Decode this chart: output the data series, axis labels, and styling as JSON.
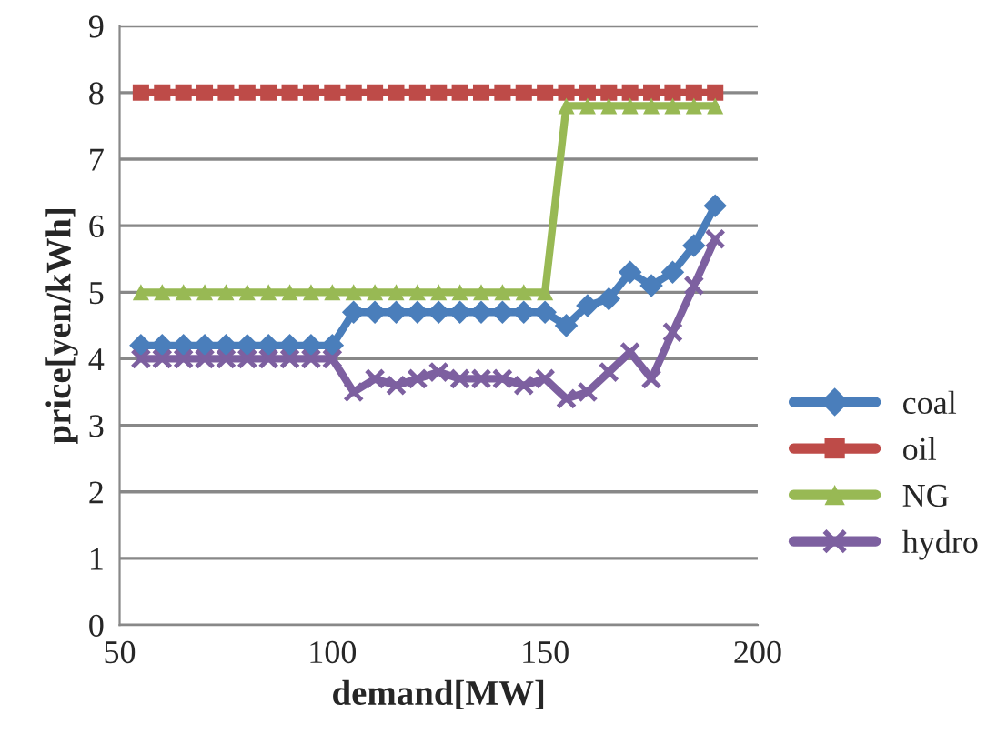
{
  "chart_data": {
    "type": "line",
    "xlabel": "demand[MW]",
    "ylabel": "price[yen/kWh]",
    "x": [
      55,
      60,
      65,
      70,
      75,
      80,
      85,
      90,
      95,
      100,
      105,
      110,
      115,
      120,
      125,
      130,
      135,
      140,
      145,
      150,
      155,
      160,
      165,
      170,
      175,
      180,
      185,
      190
    ],
    "xlim": [
      50,
      200
    ],
    "xticks": [
      50,
      100,
      150,
      200
    ],
    "ylim": [
      0,
      9
    ],
    "yticks": [
      0,
      1,
      2,
      3,
      4,
      5,
      6,
      7,
      8,
      9
    ],
    "grid": "y",
    "legend": "right",
    "series": [
      {
        "name": "coal",
        "color": "#4a7ebb",
        "marker": "diamond",
        "values": [
          4.2,
          4.2,
          4.2,
          4.2,
          4.2,
          4.2,
          4.2,
          4.2,
          4.2,
          4.2,
          4.7,
          4.7,
          4.7,
          4.7,
          4.7,
          4.7,
          4.7,
          4.7,
          4.7,
          4.7,
          4.5,
          4.8,
          4.9,
          5.3,
          5.1,
          5.3,
          5.7,
          6.3
        ]
      },
      {
        "name": "oil",
        "color": "#be4b48",
        "marker": "square",
        "values": [
          8,
          8,
          8,
          8,
          8,
          8,
          8,
          8,
          8,
          8,
          8,
          8,
          8,
          8,
          8,
          8,
          8,
          8,
          8,
          8,
          8,
          8,
          8,
          8,
          8,
          8,
          8,
          8
        ]
      },
      {
        "name": "NG",
        "color": "#98b954",
        "marker": "triangle",
        "values": [
          5,
          5,
          5,
          5,
          5,
          5,
          5,
          5,
          5,
          5,
          5,
          5,
          5,
          5,
          5,
          5,
          5,
          5,
          5,
          5,
          7.8,
          7.8,
          7.8,
          7.8,
          7.8,
          7.8,
          7.8,
          7.8
        ]
      },
      {
        "name": "hydro",
        "color": "#7d60a0",
        "marker": "cross",
        "values": [
          4,
          4,
          4,
          4,
          4,
          4,
          4,
          4,
          4,
          4,
          3.5,
          3.7,
          3.6,
          3.7,
          3.8,
          3.7,
          3.7,
          3.7,
          3.6,
          3.7,
          3.4,
          3.5,
          3.8,
          4.1,
          3.7,
          4.4,
          5.1,
          5.8
        ]
      }
    ]
  }
}
